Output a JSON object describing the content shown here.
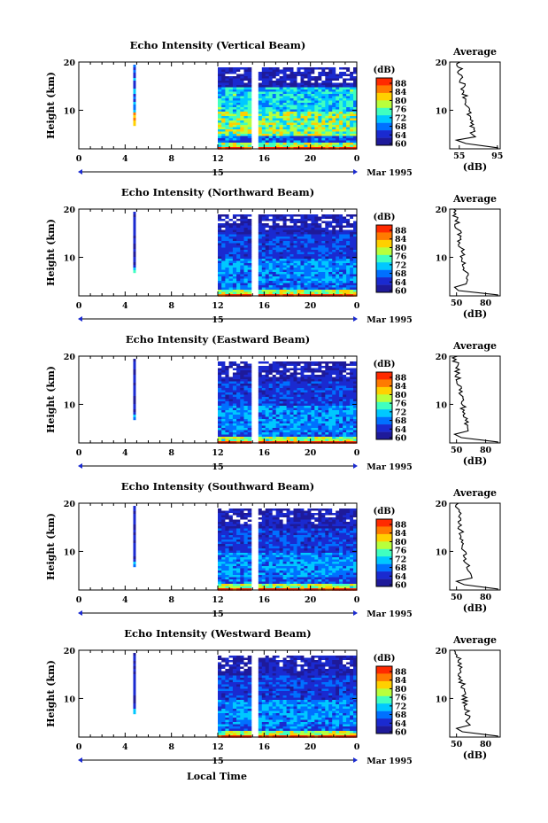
{
  "figure": {
    "bottom_xlabel": "Local Time",
    "date_label": "Mar 1995",
    "day_label": "15"
  },
  "panels": [
    {
      "title": "Echo Intensity (Vertical Beam)",
      "avg_xticks": [
        "55",
        "95"
      ],
      "avg_xlim": [
        45,
        98
      ],
      "profile_peak": 80,
      "profile_base": 58,
      "tail": [
        72,
        52,
        62,
        55
      ]
    },
    {
      "title": "Echo Intensity (Northward Beam)",
      "avg_xticks": [
        "50",
        "80"
      ],
      "avg_xlim": [
        43,
        95
      ],
      "profile_peak": 70,
      "profile_base": 52,
      "tail": [
        60,
        48,
        52,
        50
      ]
    },
    {
      "title": "Echo Intensity (Eastward Beam)",
      "avg_xticks": [
        "50",
        "80"
      ],
      "avg_xlim": [
        43,
        95
      ],
      "profile_peak": 70,
      "profile_base": 52,
      "tail": [
        62,
        48,
        55,
        50
      ]
    },
    {
      "title": "Echo Intensity (Southward Beam)",
      "avg_xticks": [
        "50",
        "80"
      ],
      "avg_xlim": [
        43,
        95
      ],
      "profile_peak": 72,
      "profile_base": 54,
      "tail": [
        66,
        50,
        58,
        52
      ]
    },
    {
      "title": "Echo Intensity (Westward Beam)",
      "avg_xticks": [
        "50",
        "80"
      ],
      "avg_xlim": [
        43,
        95
      ],
      "profile_peak": 72,
      "profile_base": 54,
      "tail": [
        64,
        50,
        56,
        52
      ]
    }
  ],
  "axes": {
    "ylabel": "Height (km)",
    "yticks": [
      "20",
      "10"
    ],
    "xticks": [
      "0",
      "4",
      "8",
      "12",
      "16",
      "20",
      "0"
    ],
    "avg_title": "Average",
    "avg_xlabel": "(dB)",
    "avg_yticks": [
      "20",
      "10"
    ]
  },
  "colorbar": {
    "label": "(dB)",
    "ticks": [
      "88",
      "84",
      "80",
      "76",
      "72",
      "68",
      "64",
      "60"
    ],
    "colors": [
      "#ff2a00",
      "#ff7a00",
      "#ffd000",
      "#b8ff3c",
      "#40ffc0",
      "#00c8ff",
      "#0070ff",
      "#1a2ad0",
      "#1e1a9a"
    ]
  },
  "chart_data": [
    {
      "type": "heatmap",
      "title": "Echo Intensity (Vertical Beam)",
      "xlabel": "Local Time",
      "ylabel": "Height (km)",
      "xlim": [
        0,
        24
      ],
      "ylim": [
        2,
        20
      ],
      "colorbar_range_dB": [
        60,
        88
      ],
      "data_segments_local_time": [
        [
          4.7,
          4.9
        ],
        [
          12,
          14.9
        ],
        [
          15.5,
          24
        ]
      ],
      "surface_band_dB": 88,
      "upper_band_dB": 62
    },
    {
      "type": "line",
      "title": "Average",
      "xlabel": "(dB)",
      "ylabel": "Height (km)",
      "xlim": [
        45,
        98
      ],
      "ylim": [
        2,
        20
      ]
    },
    {
      "type": "heatmap",
      "title": "Echo Intensity (Northward Beam)",
      "xlabel": "Local Time",
      "ylabel": "Height (km)",
      "xlim": [
        0,
        24
      ],
      "ylim": [
        2,
        20
      ],
      "colorbar_range_dB": [
        60,
        88
      ],
      "data_segments_local_time": [
        [
          4.7,
          4.9
        ],
        [
          12,
          14.9
        ],
        [
          15.5,
          24
        ]
      ],
      "surface_band_dB": 84,
      "upper_band_dB": 60
    },
    {
      "type": "line",
      "title": "Average",
      "xlabel": "(dB)",
      "ylabel": "Height (km)",
      "xlim": [
        43,
        95
      ],
      "ylim": [
        2,
        20
      ]
    },
    {
      "type": "heatmap",
      "title": "Echo Intensity (Eastward Beam)",
      "xlabel": "Local Time",
      "ylabel": "Height (km)",
      "xlim": [
        0,
        24
      ],
      "ylim": [
        2,
        20
      ],
      "colorbar_range_dB": [
        60,
        88
      ],
      "data_segments_local_time": [
        [
          4.7,
          4.9
        ],
        [
          12,
          14.9
        ],
        [
          15.5,
          24
        ]
      ],
      "surface_band_dB": 84,
      "upper_band_dB": 60
    },
    {
      "type": "line",
      "title": "Average",
      "xlabel": "(dB)",
      "ylabel": "Height (km)",
      "xlim": [
        43,
        95
      ],
      "ylim": [
        2,
        20
      ]
    },
    {
      "type": "heatmap",
      "title": "Echo Intensity (Southward Beam)",
      "xlabel": "Local Time",
      "ylabel": "Height (km)",
      "xlim": [
        0,
        24
      ],
      "ylim": [
        2,
        20
      ],
      "colorbar_range_dB": [
        60,
        88
      ],
      "data_segments_local_time": [
        [
          4.7,
          4.9
        ],
        [
          12,
          14.9
        ],
        [
          15.5,
          24
        ]
      ],
      "surface_band_dB": 86,
      "upper_band_dB": 60
    },
    {
      "type": "line",
      "title": "Average",
      "xlabel": "(dB)",
      "ylabel": "Height (km)",
      "xlim": [
        43,
        95
      ],
      "ylim": [
        2,
        20
      ]
    },
    {
      "type": "heatmap",
      "title": "Echo Intensity (Westward Beam)",
      "xlabel": "Local Time",
      "ylabel": "Height (km)",
      "xlim": [
        0,
        24
      ],
      "ylim": [
        2,
        20
      ],
      "colorbar_range_dB": [
        60,
        88
      ],
      "data_segments_local_time": [
        [
          4.7,
          4.9
        ],
        [
          12,
          14.9
        ],
        [
          15.5,
          24
        ]
      ],
      "surface_band_dB": 86,
      "upper_band_dB": 60
    },
    {
      "type": "line",
      "title": "Average",
      "xlabel": "(dB)",
      "ylabel": "Height (km)",
      "xlim": [
        43,
        95
      ],
      "ylim": [
        2,
        20
      ]
    }
  ]
}
